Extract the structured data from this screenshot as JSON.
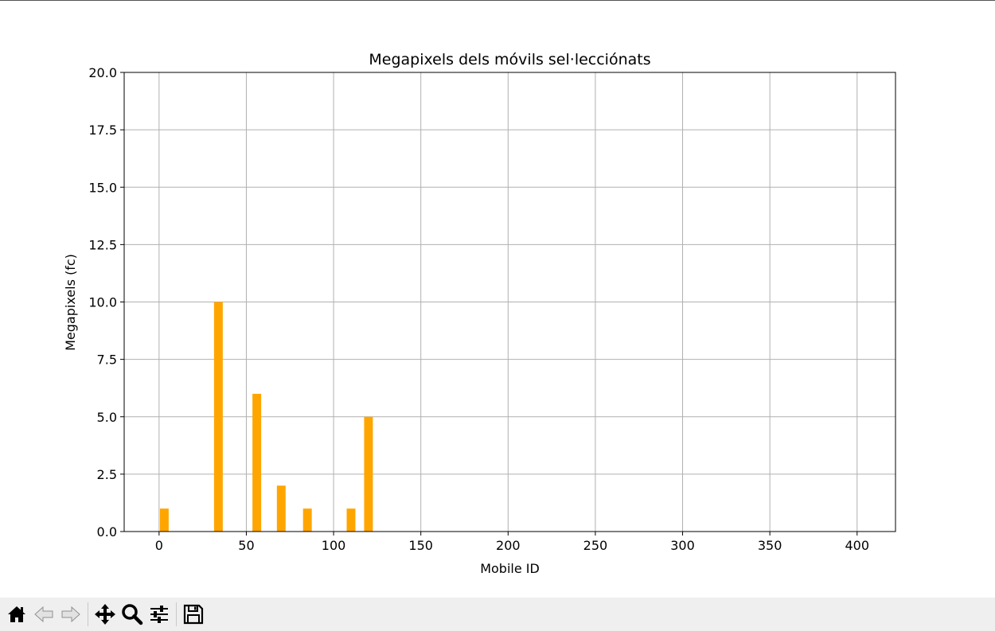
{
  "chart_data": {
    "type": "bar",
    "title": "Megapixels dels móvils sel·lecciónats",
    "xlabel": "Mobile ID",
    "ylabel": "Megapixels (fc)",
    "xlim": [
      -20,
      422
    ],
    "ylim": [
      0,
      20
    ],
    "xticks": [
      0,
      50,
      100,
      150,
      200,
      250,
      300,
      350,
      400
    ],
    "xtick_labels": [
      "0",
      "50",
      "100",
      "150",
      "200",
      "250",
      "300",
      "350",
      "400"
    ],
    "yticks": [
      0,
      2.5,
      5,
      7.5,
      10,
      12.5,
      15,
      17.5,
      20
    ],
    "ytick_labels": [
      "0.0",
      "2.5",
      "5.0",
      "7.5",
      "10.0",
      "12.5",
      "15.0",
      "17.5",
      "20.0"
    ],
    "grid": true,
    "bar_color": "#ffa500",
    "bar_width": 5,
    "x": [
      3,
      34,
      56,
      70,
      85,
      110,
      120
    ],
    "values": [
      1,
      10,
      6,
      2,
      1,
      1,
      5
    ]
  },
  "toolbar": {
    "items": [
      {
        "icon": "home-icon",
        "name": "home-button",
        "enabled": true
      },
      {
        "icon": "back-arrow-icon",
        "name": "back-button",
        "enabled": false
      },
      {
        "icon": "forward-arrow-icon",
        "name": "forward-button",
        "enabled": false
      },
      {
        "icon": "pan-icon",
        "name": "pan-button",
        "enabled": true
      },
      {
        "icon": "zoom-icon",
        "name": "zoom-button",
        "enabled": true
      },
      {
        "icon": "configure-icon",
        "name": "configure-subplots-button",
        "enabled": true
      },
      {
        "icon": "save-icon",
        "name": "save-button",
        "enabled": true
      }
    ]
  }
}
